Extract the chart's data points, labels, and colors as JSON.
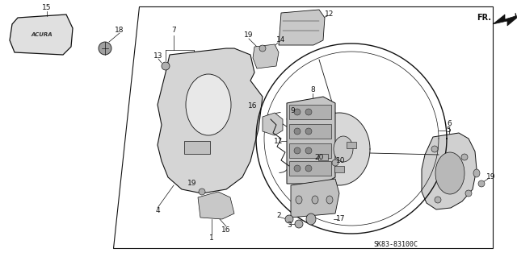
{
  "bg_color": "#ffffff",
  "line_color": "#111111",
  "part_shade": "#c8c8c8",
  "part_shade2": "#b0b0b0",
  "watermark": "SK83-83100C",
  "fr_label": "FR.",
  "label_fontsize": 6.5,
  "small_fontsize": 5.5
}
